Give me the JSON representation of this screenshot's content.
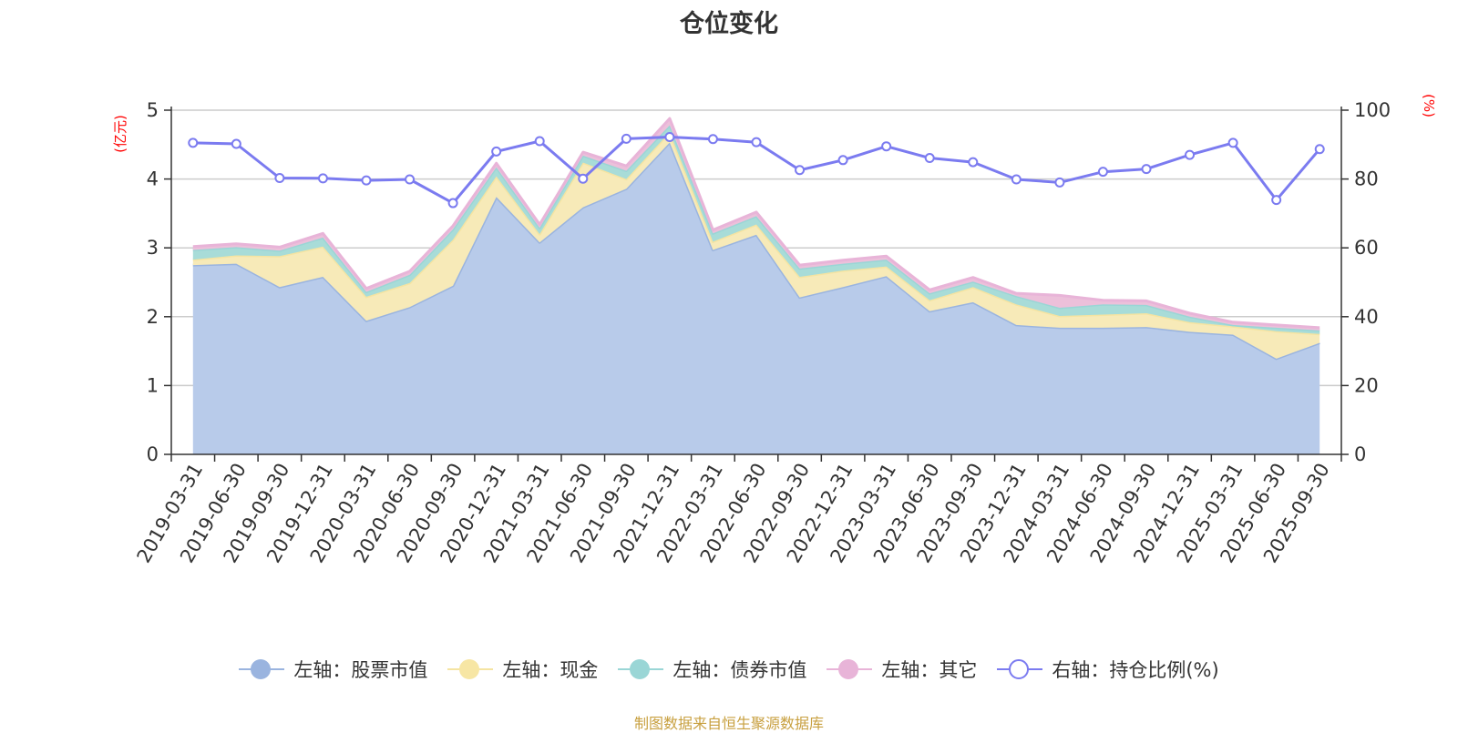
{
  "chart_data": {
    "type": "area",
    "title": "仓位变化",
    "left_axis": {
      "unit": "(亿元)",
      "ylim": [
        0,
        5
      ],
      "ticks": [
        0,
        1,
        2,
        3,
        4,
        5
      ]
    },
    "right_axis": {
      "unit": "(%)",
      "ylim": [
        0,
        100
      ],
      "ticks": [
        0,
        20,
        40,
        60,
        80,
        100
      ]
    },
    "categories": [
      "2019-03-31",
      "2019-06-30",
      "2019-09-30",
      "2019-12-31",
      "2020-03-31",
      "2020-06-30",
      "2020-09-30",
      "2020-12-31",
      "2021-03-31",
      "2021-06-30",
      "2021-09-30",
      "2021-12-31",
      "2022-03-31",
      "2022-06-30",
      "2022-09-30",
      "2022-12-31",
      "2023-03-31",
      "2023-06-30",
      "2023-09-30",
      "2023-12-31",
      "2024-03-31",
      "2024-06-30",
      "2024-09-30",
      "2024-12-31",
      "2025-03-31",
      "2025-06-30",
      "2025-09-30"
    ],
    "series": [
      {
        "name": "左轴：股票市值",
        "axis": "left",
        "stack": true,
        "color": "#9ab4df",
        "fill": "#b8cbea",
        "values": [
          2.75,
          2.77,
          2.43,
          2.58,
          1.94,
          2.14,
          2.45,
          3.74,
          3.08,
          3.59,
          3.86,
          4.53,
          2.97,
          3.19,
          2.28,
          2.43,
          2.59,
          2.08,
          2.21,
          1.88,
          1.84,
          1.84,
          1.85,
          1.78,
          1.74,
          1.39,
          1.62
        ]
      },
      {
        "name": "左轴：现金",
        "axis": "left",
        "stack": true,
        "color": "#f5e4a2",
        "fill": "#f7eab8",
        "values": [
          0.08,
          0.12,
          0.45,
          0.44,
          0.35,
          0.35,
          0.67,
          0.3,
          0.12,
          0.65,
          0.14,
          0.15,
          0.12,
          0.15,
          0.3,
          0.24,
          0.14,
          0.16,
          0.22,
          0.3,
          0.17,
          0.19,
          0.2,
          0.14,
          0.12,
          0.4,
          0.13
        ]
      },
      {
        "name": "左轴：债券市值",
        "axis": "left",
        "stack": true,
        "color": "#9ad6d6",
        "fill": "#a8dcd8",
        "values": [
          0.14,
          0.12,
          0.08,
          0.13,
          0.07,
          0.12,
          0.15,
          0.13,
          0.09,
          0.1,
          0.12,
          0.1,
          0.12,
          0.12,
          0.12,
          0.1,
          0.1,
          0.1,
          0.08,
          0.12,
          0.12,
          0.15,
          0.12,
          0.08,
          0.02,
          0.05,
          0.05
        ]
      },
      {
        "name": "左轴：其它",
        "axis": "left",
        "stack": true,
        "color": "#e8b4d8",
        "fill": "#ecc0da",
        "values": [
          0.05,
          0.05,
          0.05,
          0.06,
          0.05,
          0.05,
          0.05,
          0.06,
          0.05,
          0.05,
          0.07,
          0.1,
          0.05,
          0.06,
          0.05,
          0.05,
          0.05,
          0.05,
          0.06,
          0.04,
          0.18,
          0.06,
          0.06,
          0.05,
          0.04,
          0.04,
          0.04
        ]
      },
      {
        "name": "右轴：持仓比例(%)",
        "axis": "right",
        "stack": false,
        "color": "#7b7bf0",
        "values": [
          90.5,
          90.2,
          80.3,
          80.2,
          79.6,
          79.9,
          73.0,
          88.0,
          91.0,
          80.1,
          91.7,
          92.2,
          91.6,
          90.7,
          82.6,
          85.5,
          89.5,
          86.1,
          84.9,
          79.9,
          79.0,
          82.1,
          82.9,
          87.0,
          90.5,
          73.9,
          88.7
        ]
      }
    ]
  },
  "source_text": "制图数据来自恒生聚源数据库"
}
